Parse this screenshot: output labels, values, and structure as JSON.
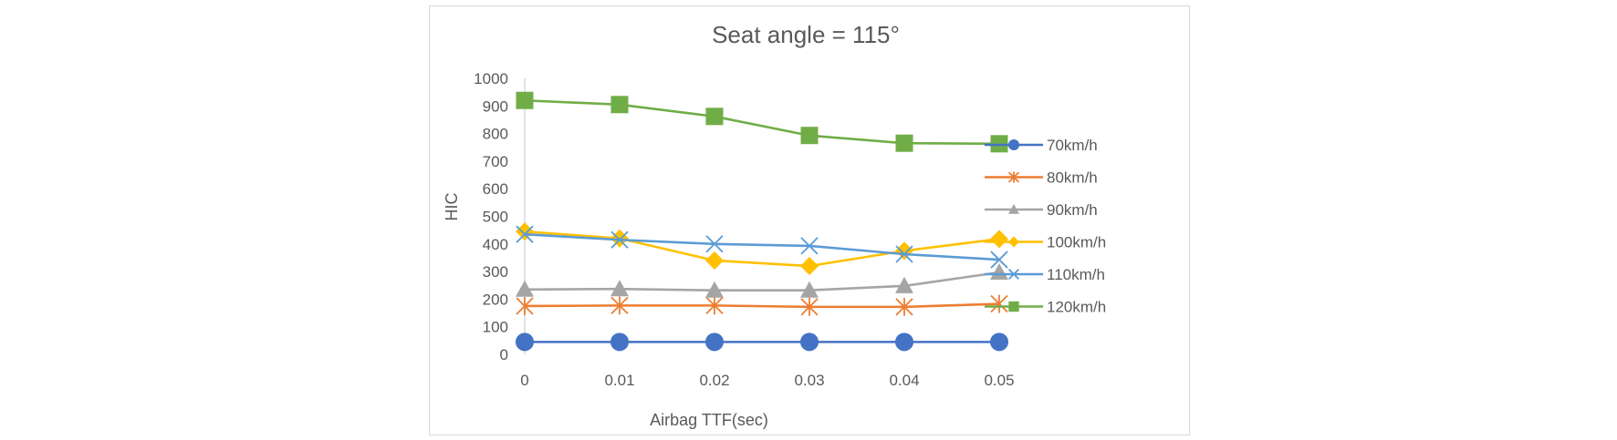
{
  "chart_data": {
    "type": "line",
    "title": "Seat angle = 115°",
    "xlabel": "Airbag TTF(sec)",
    "ylabel": "HIC",
    "categories": [
      "0",
      "0.01",
      "0.02",
      "0.03",
      "0.04",
      "0.05"
    ],
    "ylim": [
      0,
      1000
    ],
    "yticks": [
      "0",
      "100",
      "200",
      "300",
      "400",
      "500",
      "600",
      "700",
      "800",
      "900",
      "1000"
    ],
    "ytick_values": [
      0,
      100,
      200,
      300,
      400,
      500,
      600,
      700,
      800,
      900,
      1000
    ],
    "grid": false,
    "legend_position": "right",
    "series": [
      {
        "name": "70km/h",
        "color": "#4472c4",
        "marker": "circle",
        "values": [
          45,
          45,
          45,
          45,
          45,
          45
        ]
      },
      {
        "name": "80km/h",
        "color": "#ed7d31",
        "marker": "asterisk",
        "values": [
          175,
          177,
          177,
          172,
          172,
          183
        ]
      },
      {
        "name": "90km/h",
        "color": "#a5a5a5",
        "marker": "triangle",
        "values": [
          235,
          237,
          232,
          232,
          248,
          297
        ]
      },
      {
        "name": "100km/h",
        "color": "#ffc000",
        "marker": "diamond",
        "values": [
          445,
          420,
          340,
          320,
          375,
          418
        ]
      },
      {
        "name": "110km/h",
        "color": "#5b9bd5",
        "marker": "x",
        "values": [
          435,
          415,
          400,
          393,
          363,
          343
        ]
      },
      {
        "name": "120km/h",
        "color": "#70ad47",
        "marker": "square",
        "values": [
          920,
          905,
          862,
          793,
          765,
          763
        ]
      }
    ]
  }
}
